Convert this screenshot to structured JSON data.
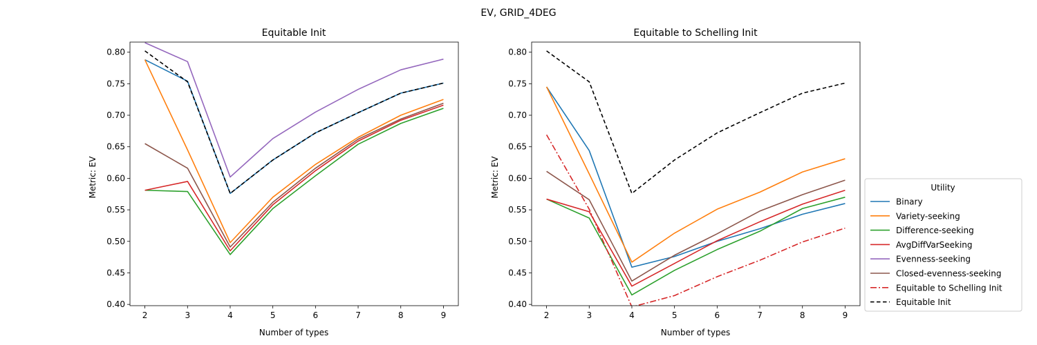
{
  "suptitle": "EV, GRID_4DEG",
  "chart_data": [
    {
      "type": "line",
      "title": "Equitable Init",
      "xlabel": "Number of types",
      "ylabel": "Metric: EV",
      "x": [
        2,
        3,
        4,
        5,
        6,
        7,
        8,
        9
      ],
      "xlim": [
        1.65,
        9.35
      ],
      "ylim": [
        0.398,
        0.816
      ],
      "yticks": [
        "0.40",
        "0.45",
        "0.50",
        "0.55",
        "0.60",
        "0.65",
        "0.70",
        "0.75",
        "0.80"
      ],
      "xticks": [
        "2",
        "3",
        "4",
        "5",
        "6",
        "7",
        "8",
        "9"
      ],
      "grid": false,
      "series": [
        {
          "name": "Binary",
          "color": "#1f77b4",
          "style": "solid",
          "values": [
            0.788,
            0.754,
            0.576,
            0.629,
            0.672,
            0.704,
            0.735,
            0.751
          ]
        },
        {
          "name": "Variety-seeking",
          "color": "#ff7f0e",
          "style": "solid",
          "values": [
            0.788,
            0.645,
            0.498,
            0.57,
            0.622,
            0.665,
            0.7,
            0.725
          ]
        },
        {
          "name": "Difference-seeking",
          "color": "#2ca02c",
          "style": "solid",
          "values": [
            0.581,
            0.579,
            0.479,
            0.552,
            0.604,
            0.654,
            0.687,
            0.711
          ]
        },
        {
          "name": "AvgDiffVarSeeking",
          "color": "#d62728",
          "style": "solid",
          "values": [
            0.581,
            0.595,
            0.485,
            0.558,
            0.612,
            0.659,
            0.692,
            0.716
          ]
        },
        {
          "name": "Evenness-seeking",
          "color": "#9467bd",
          "style": "solid",
          "values": [
            0.815,
            0.785,
            0.602,
            0.663,
            0.705,
            0.741,
            0.772,
            0.789
          ]
        },
        {
          "name": "Closed-evenness-seeking",
          "color": "#8c564b",
          "style": "solid",
          "values": [
            0.655,
            0.616,
            0.491,
            0.562,
            0.616,
            0.662,
            0.694,
            0.719
          ]
        },
        {
          "name": "Equitable Init",
          "color": "#000000",
          "style": "dashed",
          "values": [
            0.802,
            0.753,
            0.576,
            0.629,
            0.672,
            0.704,
            0.735,
            0.751
          ]
        }
      ]
    },
    {
      "type": "line",
      "title": "Equitable to Schelling Init",
      "xlabel": "Number of types",
      "ylabel": "Metric: EV",
      "x": [
        2,
        3,
        4,
        5,
        6,
        7,
        8,
        9
      ],
      "xlim": [
        1.65,
        9.35
      ],
      "ylim": [
        0.398,
        0.816
      ],
      "yticks": [
        "0.40",
        "0.45",
        "0.50",
        "0.55",
        "0.60",
        "0.65",
        "0.70",
        "0.75",
        "0.80"
      ],
      "xticks": [
        "2",
        "3",
        "4",
        "5",
        "6",
        "7",
        "8",
        "9"
      ],
      "grid": false,
      "series": [
        {
          "name": "Binary",
          "color": "#1f77b4",
          "style": "solid",
          "values": [
            0.745,
            0.644,
            0.459,
            0.476,
            0.5,
            0.52,
            0.543,
            0.56
          ]
        },
        {
          "name": "Variety-seeking",
          "color": "#ff7f0e",
          "style": "solid",
          "values": [
            0.745,
            0.607,
            0.467,
            0.513,
            0.551,
            0.578,
            0.61,
            0.631
          ]
        },
        {
          "name": "Difference-seeking",
          "color": "#2ca02c",
          "style": "solid",
          "values": [
            0.567,
            0.537,
            0.415,
            0.454,
            0.487,
            0.516,
            0.552,
            0.57
          ]
        },
        {
          "name": "AvgDiffVarSeeking",
          "color": "#d62728",
          "style": "solid",
          "values": [
            0.567,
            0.547,
            0.429,
            0.465,
            0.501,
            0.531,
            0.559,
            0.581
          ]
        },
        {
          "name": "Closed-evenness-seeking",
          "color": "#8c564b",
          "style": "solid",
          "values": [
            0.611,
            0.566,
            0.437,
            0.478,
            0.512,
            0.548,
            0.574,
            0.597
          ]
        },
        {
          "name": "Equitable to Schelling Init",
          "color": "#d62728",
          "style": "dashdot",
          "values": [
            0.669,
            0.551,
            0.396,
            0.414,
            0.444,
            0.47,
            0.499,
            0.521
          ]
        },
        {
          "name": "Equitable Init",
          "color": "#000000",
          "style": "dashed",
          "values": [
            0.802,
            0.753,
            0.576,
            0.629,
            0.672,
            0.704,
            0.735,
            0.751
          ]
        }
      ]
    }
  ],
  "legend": {
    "title": "Utility",
    "placement": "right of second panel",
    "entries": [
      {
        "label": "Binary",
        "color": "#1f77b4",
        "style": "solid"
      },
      {
        "label": "Variety-seeking",
        "color": "#ff7f0e",
        "style": "solid"
      },
      {
        "label": "Difference-seeking",
        "color": "#2ca02c",
        "style": "solid"
      },
      {
        "label": "AvgDiffVarSeeking",
        "color": "#d62728",
        "style": "solid"
      },
      {
        "label": "Evenness-seeking",
        "color": "#9467bd",
        "style": "solid"
      },
      {
        "label": "Closed-evenness-seeking",
        "color": "#8c564b",
        "style": "solid"
      },
      {
        "label": "Equitable to Schelling Init",
        "color": "#d62728",
        "style": "dashdot"
      },
      {
        "label": "Equitable Init",
        "color": "#000000",
        "style": "dashed"
      }
    ]
  }
}
